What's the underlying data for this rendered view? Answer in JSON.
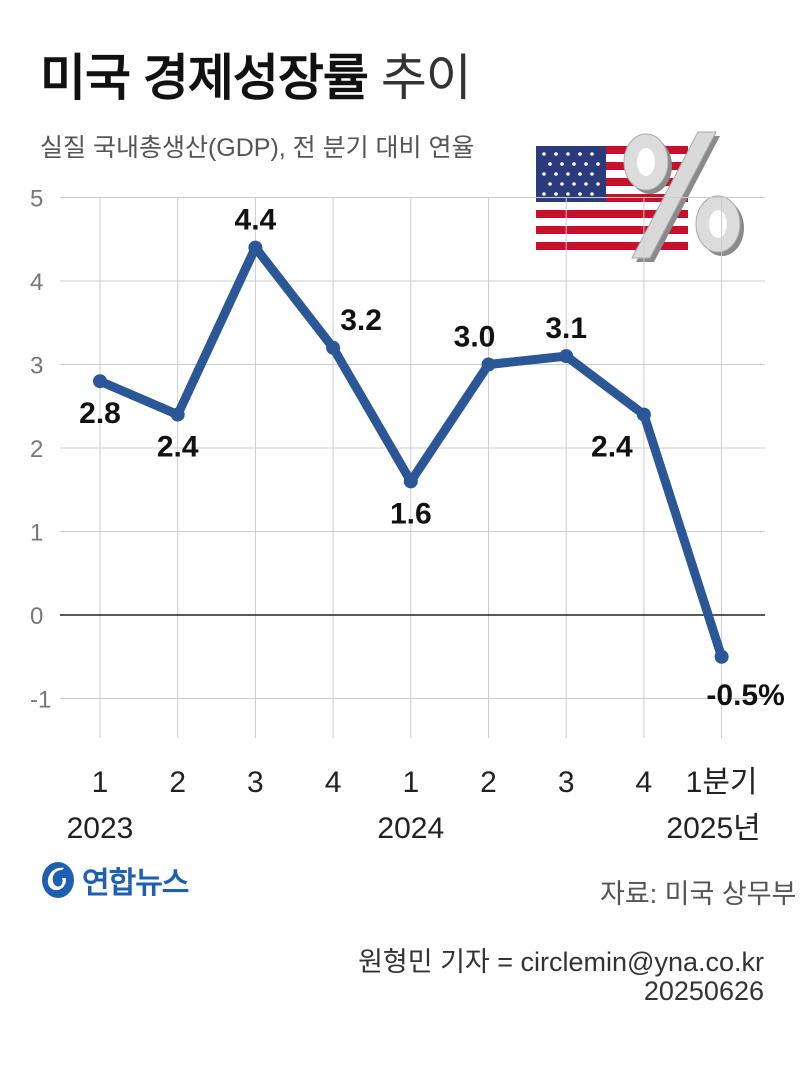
{
  "header": {
    "title_bold": "미국 경제성장률",
    "title_normal": "추이",
    "subtitle": "실질 국내총생산(GDP), 전 분기 대비 연율"
  },
  "chart_data": {
    "type": "line",
    "categories": [
      "1",
      "2",
      "3",
      "4",
      "1",
      "2",
      "3",
      "4",
      "1분기"
    ],
    "year_labels": [
      {
        "index": 0,
        "label": "2023"
      },
      {
        "index": 4,
        "label": "2024"
      },
      {
        "index": 8,
        "label": "2025년"
      }
    ],
    "values": [
      2.8,
      2.4,
      4.4,
      3.2,
      1.6,
      3.0,
      3.1,
      2.4,
      -0.5
    ],
    "data_labels": [
      "2.8",
      "2.4",
      "4.4",
      "3.2",
      "1.6",
      "3.0",
      "3.1",
      "2.4",
      "-0.5%"
    ],
    "y_ticks": [
      "5",
      "4",
      "3",
      "2",
      "1",
      "0",
      "-1"
    ],
    "ylim": [
      -1,
      5
    ],
    "grid": "vertical and horizontal",
    "line_color": "#2b5797",
    "grid_color": "#cccccc",
    "zero_line_color": "#222222"
  },
  "footer": {
    "logo_text": "연합뉴스",
    "source": "자료: 미국 상무부",
    "reporter": "원형민 기자 = circlemin@yna.co.kr",
    "date": "20250626"
  },
  "decoration": {
    "flag_icon": "us-flag-icon",
    "percent_icon": "percent-3d-icon"
  }
}
